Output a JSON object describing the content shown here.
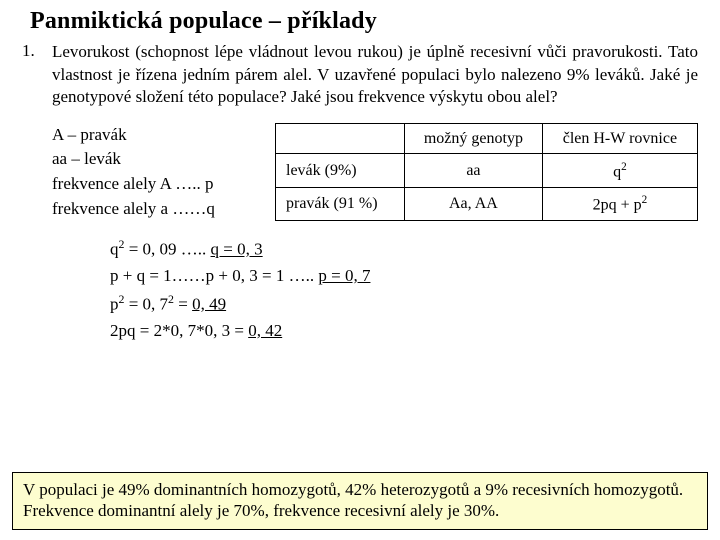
{
  "title": "Panmiktická populace – příklady",
  "exampleNumber": "1.",
  "problem": "Levorukost (schopnost lépe vládnout levou rukou) je úplně recesivní vůči pravorukosti. Tato vlastnost je řízena jedním párem alel. V uzavřené populaci bylo nalezeno 9% leváků. Jaké je genotypové složení této populace? Jaké jsou frekvence výskytu obou alel?",
  "legend": {
    "l1": "A – pravák",
    "l2": "aa – levák",
    "l3": "frekvence alely A ….. p",
    "l4": "frekvence alely a ……q"
  },
  "table": {
    "h1": "",
    "h2": "možný genotyp",
    "h3": "člen H-W rovnice",
    "r1c1": "levák (9%)",
    "r1c2": "aa",
    "r2c1": "pravák (91 %)",
    "r2c2": "Aa, AA"
  },
  "calc": {
    "c1a": "q",
    "c1b": " = 0, 09 ….. ",
    "c1c": "q = 0, 3",
    "c2a": "p + q = 1……p + 0, 3 = 1 ….. ",
    "c2b": "p = 0, 7",
    "c3a": "p",
    "c3b": " = 0, 7",
    "c3c": " = ",
    "c3d": "0, 49",
    "c4a": "2pq = 2*0, 7*0, 3 = ",
    "c4b": "0, 42"
  },
  "conclusion": {
    "p1": "V populaci je 49% dominantních homozygotů, 42% heterozygotů a 9% recesivních homozygotů.",
    "p2": "Frekvence dominantní alely je 70%, frekvence recesivní alely je 30%."
  },
  "colors": {
    "highlight": "#fdfdcf"
  }
}
